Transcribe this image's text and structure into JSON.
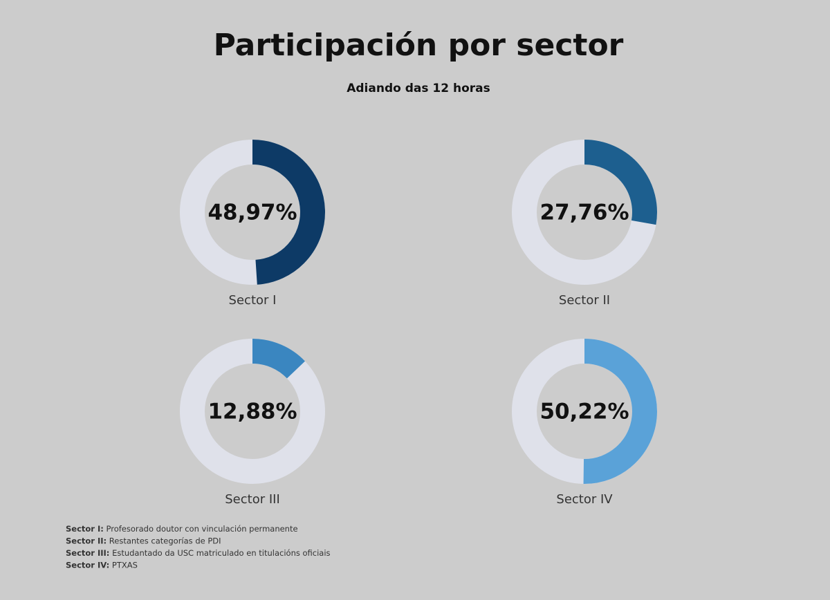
{
  "chart_data": {
    "type": "donut",
    "title": "Participación por sector",
    "subtitle": "Adiando das 12 horas",
    "categories": [
      "Sector I",
      "Sector II",
      "Sector III",
      "Sector IV"
    ],
    "values": [
      48.97,
      27.76,
      12.88,
      50.22
    ],
    "value_labels": [
      "48,97%",
      "27,76%",
      "12,88%",
      "50,22%"
    ],
    "colors": [
      "#0d3a66",
      "#1d5f8f",
      "#3a86c0",
      "#5aa2d8"
    ],
    "track_color": "#dfe1ea",
    "notes": [
      {
        "term": "Sector I:",
        "text": "Profesorado doutor con vinculación permanente"
      },
      {
        "term": "Sector II:",
        "text": "Restantes categorías de PDI"
      },
      {
        "term": "Sector III:",
        "text": "Estudantado da USC matriculado en titulacións oficiais"
      },
      {
        "term": "Sector IV:",
        "text": "PTXAS"
      }
    ]
  }
}
